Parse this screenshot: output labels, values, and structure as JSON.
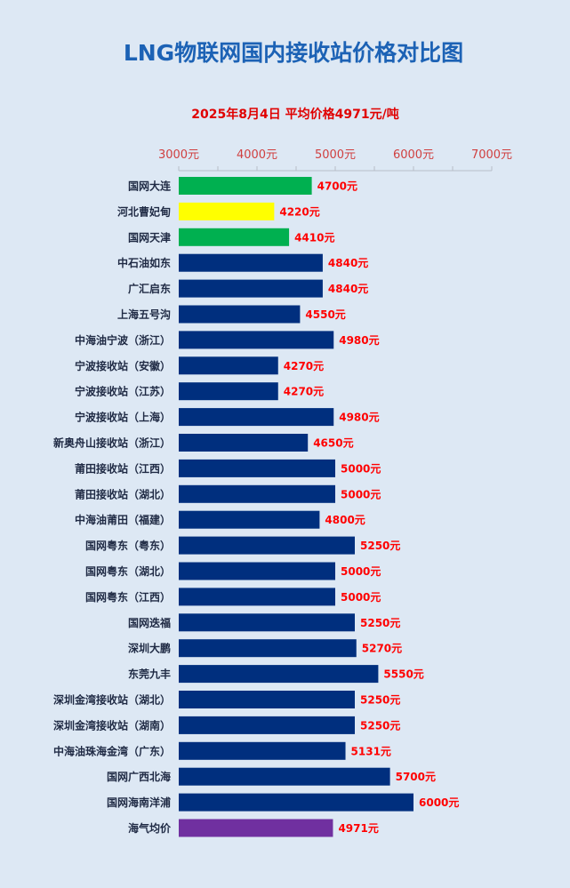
{
  "chart_data": {
    "type": "bar",
    "orientation": "horizontal",
    "title": "LNG物联网国内接收站价格对比图",
    "subtitle": "2025年8月4日 平均价格4971元/吨",
    "xlim": [
      3000,
      7000
    ],
    "ticks": [
      3000,
      4000,
      5000,
      6000,
      7000
    ],
    "tick_labels": [
      "3000元",
      "4000元",
      "5000元",
      "6000元",
      "7000元"
    ],
    "value_suffix": "元",
    "grid": false,
    "legend": "none",
    "categories": [
      "国网大连",
      "河北曹妃甸",
      "国网天津",
      "中石油如东",
      "广汇启东",
      "上海五号沟",
      "中海油宁波（浙江）",
      "宁波接收站（安徽）",
      "宁波接收站（江苏）",
      "宁波接收站（上海）",
      "新奥舟山接收站（浙江）",
      "莆田接收站（江西）",
      "莆田接收站（湖北）",
      "中海油莆田（福建）",
      "国网粤东（粤东）",
      "国网粤东（湖北）",
      "国网粤东（江西）",
      "国网迭福",
      "深圳大鹏",
      "东莞九丰",
      "深圳金湾接收站（湖北）",
      "深圳金湾接收站（湖南）",
      "中海油珠海金湾（广东）",
      "国网广西北海",
      "国网海南洋浦",
      "海气均价"
    ],
    "values": [
      4700,
      4220,
      4410,
      4840,
      4840,
      4550,
      4980,
      4270,
      4270,
      4980,
      4650,
      5000,
      5000,
      4800,
      5250,
      5000,
      5000,
      5250,
      5270,
      5550,
      5250,
      5250,
      5131,
      5700,
      6000,
      4971
    ],
    "bar_colors": [
      "#00b050",
      "#ffff00",
      "#00b050",
      "#002f7e",
      "#002f7e",
      "#002f7e",
      "#002f7e",
      "#002f7e",
      "#002f7e",
      "#002f7e",
      "#002f7e",
      "#002f7e",
      "#002f7e",
      "#002f7e",
      "#002f7e",
      "#002f7e",
      "#002f7e",
      "#002f7e",
      "#002f7e",
      "#002f7e",
      "#002f7e",
      "#002f7e",
      "#002f7e",
      "#002f7e",
      "#002f7e",
      "#7030a0"
    ]
  }
}
